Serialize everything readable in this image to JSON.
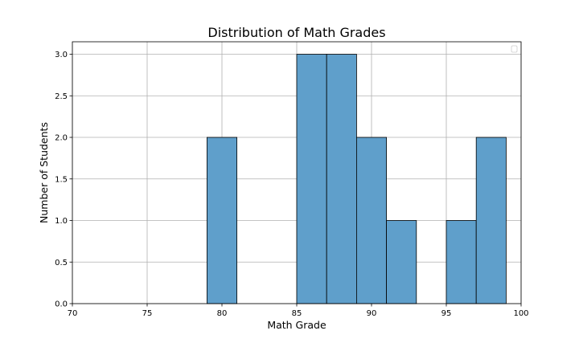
{
  "chart_data": {
    "type": "bar",
    "title": "Distribution of Math Grades",
    "xlabel": "Math Grade",
    "ylabel": "Number of Students",
    "xlim": [
      70,
      100
    ],
    "ylim": [
      0,
      3.15
    ],
    "xticks": [
      70,
      75,
      80,
      85,
      90,
      95,
      100
    ],
    "xtick_labels": [
      "70",
      "75",
      "80",
      "85",
      "90",
      "95",
      "100"
    ],
    "yticks": [
      0,
      0.5,
      1,
      1.5,
      2,
      2.5,
      3
    ],
    "ytick_labels": [
      "0.0",
      "0.5",
      "1.0",
      "1.5",
      "2.0",
      "2.5",
      "3.0"
    ],
    "grid": true,
    "legend": "top-right",
    "bar_color": "#5f9fcb",
    "bins": [
      {
        "x0": 79,
        "x1": 81,
        "count": 2
      },
      {
        "x0": 85,
        "x1": 87,
        "count": 3
      },
      {
        "x0": 87,
        "x1": 89,
        "count": 3
      },
      {
        "x0": 89,
        "x1": 91,
        "count": 2
      },
      {
        "x0": 91,
        "x1": 93,
        "count": 1
      },
      {
        "x0": 95,
        "x1": 97,
        "count": 1
      },
      {
        "x0": 97,
        "x1": 99,
        "count": 2
      }
    ]
  }
}
